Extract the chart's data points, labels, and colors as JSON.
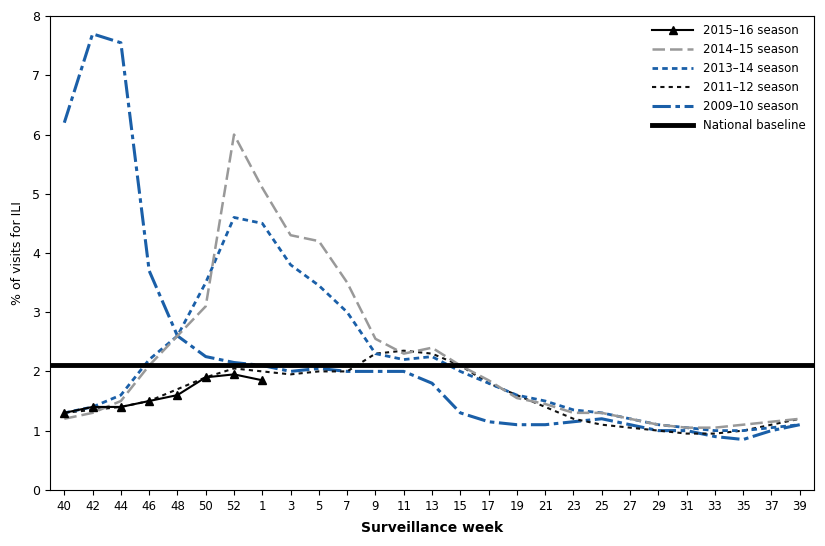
{
  "title": "",
  "xlabel": "Surveillance week",
  "ylabel": "% of visits for ILI",
  "ylim": [
    0,
    8
  ],
  "yticks": [
    0,
    1,
    2,
    3,
    4,
    5,
    6,
    7,
    8
  ],
  "national_baseline": 2.1,
  "x_labels": [
    "40",
    "42",
    "44",
    "46",
    "48",
    "50",
    "52",
    "1",
    "3",
    "5",
    "7",
    "9",
    "11",
    "13",
    "15",
    "17",
    "19",
    "21",
    "23",
    "25",
    "27",
    "29",
    "31",
    "33",
    "35",
    "37",
    "39"
  ],
  "series": {
    "2015-16": {
      "label": "2015–16 season",
      "color": "#000000",
      "linewidth": 1.5,
      "marker": "^",
      "markersize": 6,
      "data": [
        1.3,
        1.4,
        1.4,
        1.5,
        1.6,
        1.9,
        1.95,
        1.85,
        null,
        null,
        null,
        null,
        null,
        null,
        null,
        null,
        null,
        null,
        null,
        null,
        null,
        null,
        null,
        null,
        null,
        null,
        null
      ]
    },
    "2014-15": {
      "label": "2014–15 season",
      "color": "#999999",
      "linewidth": 1.8,
      "data": [
        1.2,
        1.3,
        1.5,
        2.1,
        2.6,
        3.1,
        6.0,
        5.1,
        4.3,
        4.2,
        3.5,
        2.55,
        2.3,
        2.4,
        2.1,
        1.85,
        1.55,
        1.45,
        1.3,
        1.3,
        1.2,
        1.1,
        1.05,
        1.05,
        1.1,
        1.15,
        1.2
      ]
    },
    "2013-14": {
      "label": "2013–14 season",
      "color": "#1a5fa8",
      "linewidth": 2.0,
      "data": [
        1.3,
        1.4,
        1.6,
        2.2,
        2.6,
        3.5,
        4.6,
        4.5,
        3.8,
        3.45,
        3.0,
        2.3,
        2.2,
        2.25,
        2.0,
        1.8,
        1.6,
        1.5,
        1.35,
        1.3,
        1.2,
        1.1,
        1.05,
        1.0,
        1.0,
        1.05,
        1.1
      ]
    },
    "2011-12": {
      "label": "2011–12 season",
      "color": "#111111",
      "linewidth": 1.5,
      "data": [
        1.3,
        1.35,
        1.4,
        1.5,
        1.7,
        1.9,
        2.05,
        2.0,
        1.95,
        2.0,
        2.0,
        2.3,
        2.35,
        2.3,
        2.1,
        1.8,
        1.6,
        1.4,
        1.2,
        1.1,
        1.05,
        1.0,
        0.95,
        0.95,
        1.0,
        1.1,
        1.2
      ]
    },
    "2009-10": {
      "label": "2009–10 season",
      "color": "#1a5fa8",
      "linewidth": 2.2,
      "data": [
        6.2,
        7.7,
        7.55,
        3.7,
        2.6,
        2.25,
        2.15,
        2.1,
        2.0,
        2.05,
        2.0,
        2.0,
        2.0,
        1.8,
        1.3,
        1.15,
        1.1,
        1.1,
        1.15,
        1.2,
        1.1,
        1.0,
        1.0,
        0.9,
        0.85,
        1.0,
        1.1
      ]
    }
  },
  "figsize": [
    8.25,
    5.46
  ],
  "dpi": 100
}
